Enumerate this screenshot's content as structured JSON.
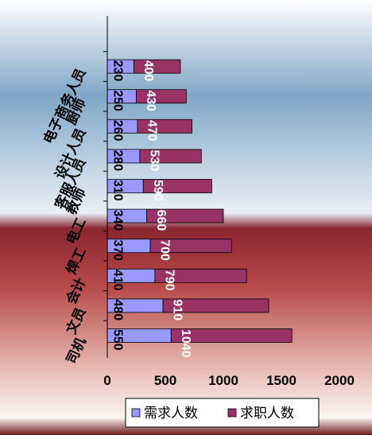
{
  "chart_data": {
    "type": "bar",
    "orientation": "horizontal",
    "stacked": true,
    "categories": [
      "司机",
      "文员",
      "会计",
      "焊工",
      "电工",
      "教师",
      "客服人员",
      "设计人员",
      "厨师",
      "电子商务人员"
    ],
    "series": [
      {
        "name": "需求人数",
        "values": [
          550,
          480,
          410,
          370,
          340,
          310,
          280,
          260,
          250,
          230
        ],
        "color": "#9999FF"
      },
      {
        "name": "求职人数",
        "values": [
          1040,
          910,
          790,
          700,
          660,
          590,
          530,
          470,
          430,
          400
        ],
        "color": "#993366"
      }
    ],
    "x_ticks": [
      "0",
      "500",
      "1000",
      "1500",
      "2000"
    ],
    "xlim": [
      0,
      2000
    ],
    "grid": false,
    "legend_position": "bottom",
    "background": "gradient"
  }
}
